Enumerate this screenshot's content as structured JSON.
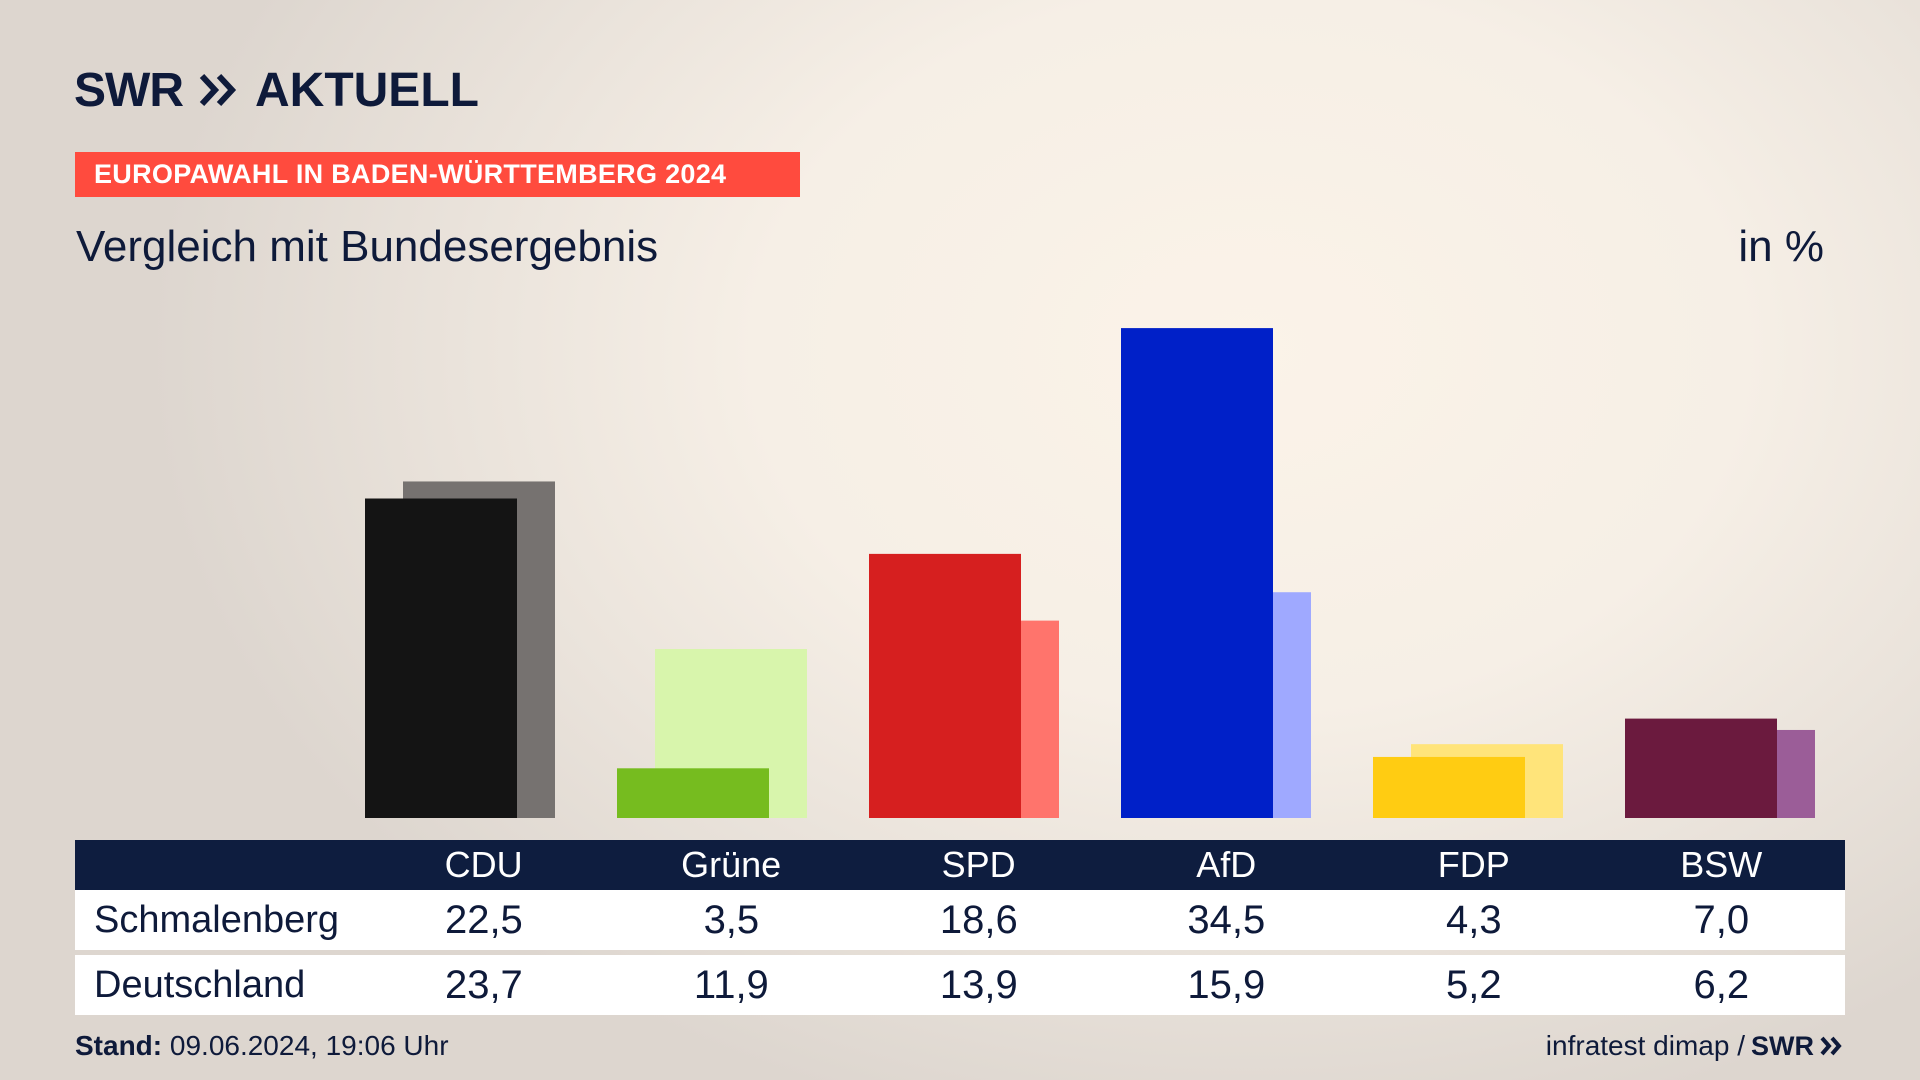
{
  "header": {
    "brand": "SWR",
    "product": "AKTUELL",
    "kicker": "EUROPAWAHL IN BADEN-WÜRTTEMBERG 2024",
    "title": "Vergleich mit Bundesergebnis",
    "unit": "in %"
  },
  "colors": {
    "brand_navy": "#0e1a3a",
    "kicker_red": "#ff4b3e",
    "table_header": "#0e1d3f"
  },
  "chart_data": {
    "type": "bar",
    "title": "Vergleich mit Bundesergebnis",
    "unit": "in %",
    "categories": [
      "CDU",
      "Grüne",
      "SPD",
      "AfD",
      "FDP",
      "BSW"
    ],
    "series": [
      {
        "name": "Schmalenberg",
        "values": [
          22.5,
          3.5,
          18.6,
          34.5,
          4.3,
          7.0
        ],
        "colors": [
          "#141414",
          "#76bc1f",
          "#d61f1f",
          "#0020c8",
          "#ffcc12",
          "#6b1a3e"
        ]
      },
      {
        "name": "Deutschland",
        "values": [
          23.7,
          11.9,
          13.9,
          15.9,
          5.2,
          6.2
        ],
        "colors": [
          "#767270",
          "#d8f5ac",
          "#ff746c",
          "#9fa9ff",
          "#ffe47a",
          "#9b5d98"
        ]
      }
    ],
    "ylim": [
      0,
      35
    ]
  },
  "table": {
    "columns": [
      "CDU",
      "Grüne",
      "SPD",
      "AfD",
      "FDP",
      "BSW"
    ],
    "rows": [
      {
        "label": "Schmalenberg",
        "values": [
          "22,5",
          "3,5",
          "18,6",
          "34,5",
          "4,3",
          "7,0"
        ]
      },
      {
        "label": "Deutschland",
        "values": [
          "23,7",
          "11,9",
          "13,9",
          "15,9",
          "5,2",
          "6,2"
        ]
      }
    ]
  },
  "footer": {
    "stand_label": "Stand:",
    "stand_value": "09.06.2024, 19:06 Uhr",
    "source": "infratest dimap /",
    "source_brand": "SWR"
  }
}
